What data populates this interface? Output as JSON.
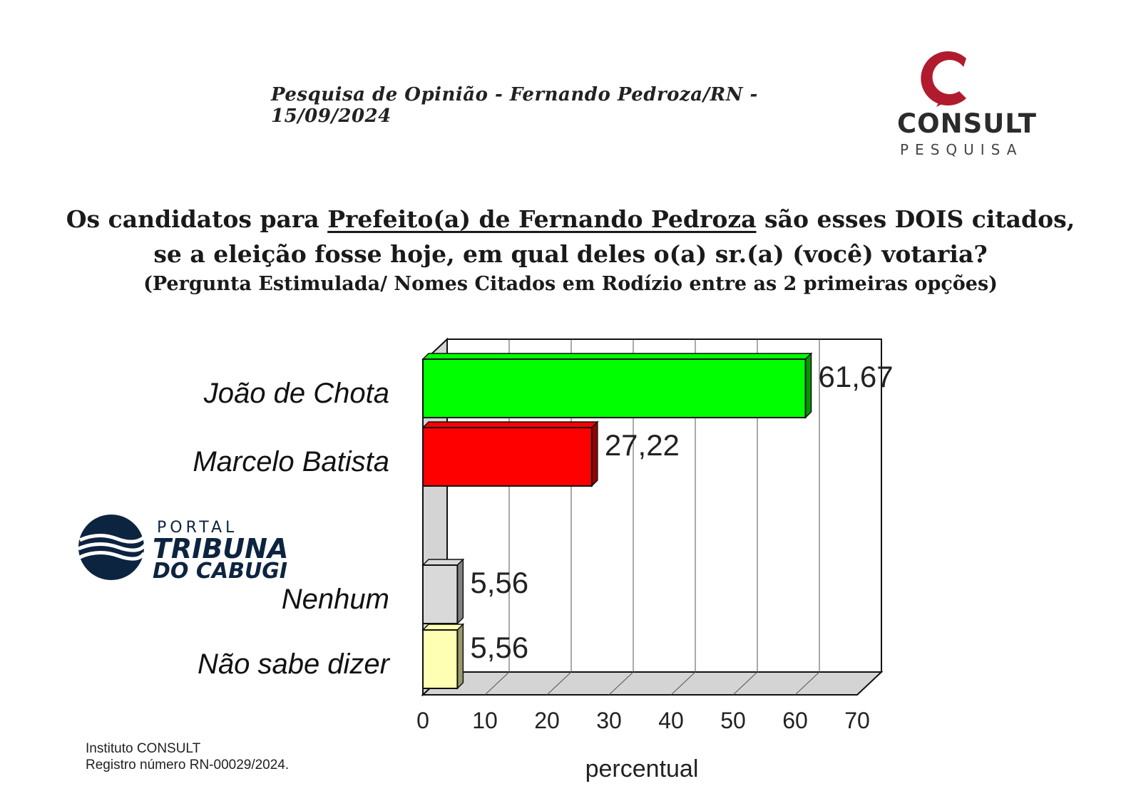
{
  "header": {
    "text": "Pesquisa de Opinião  -  Fernando Pedroza/RN  -  15/09/2024"
  },
  "logo": {
    "name": "CONSULT",
    "sub": "PESQUISA",
    "accent": "#b01c2e"
  },
  "question": {
    "line1_pre": "Os candidatos para ",
    "line1_underlined": "Prefeito(a) de Fernando Pedroza",
    "line1_post": " são esses DOIS citados,",
    "line2": "se a eleição fosse hoje, em qual deles o(a) sr.(a) (você) votaria?",
    "line3": "(Pergunta Estimulada/ Nomes Citados em Rodízio entre as 2 primeiras opções)"
  },
  "watermark": {
    "portal": "PORTAL",
    "main": "TRIBUNA",
    "sub": "DO CABUGI"
  },
  "footer": {
    "line1": "Instituto CONSULT",
    "line2": "Registro número RN-00029/2024."
  },
  "chart_data": {
    "type": "bar",
    "orientation": "horizontal",
    "categories": [
      "João de Chota",
      "Marcelo Batista",
      "Nenhum",
      "Não sabe dizer"
    ],
    "values": [
      61.67,
      27.22,
      5.56,
      5.56
    ],
    "value_labels": [
      "61,67",
      "27,22",
      "5,56",
      "5,56"
    ],
    "colors": [
      "#00ff00",
      "#ff0000",
      "#d9d9d9",
      "#ffffb3"
    ],
    "xlabel": "percentual",
    "xlim": [
      0,
      70
    ],
    "xticks": [
      "0",
      "10",
      "20",
      "30",
      "40",
      "50",
      "60",
      "70"
    ],
    "grid": true
  }
}
